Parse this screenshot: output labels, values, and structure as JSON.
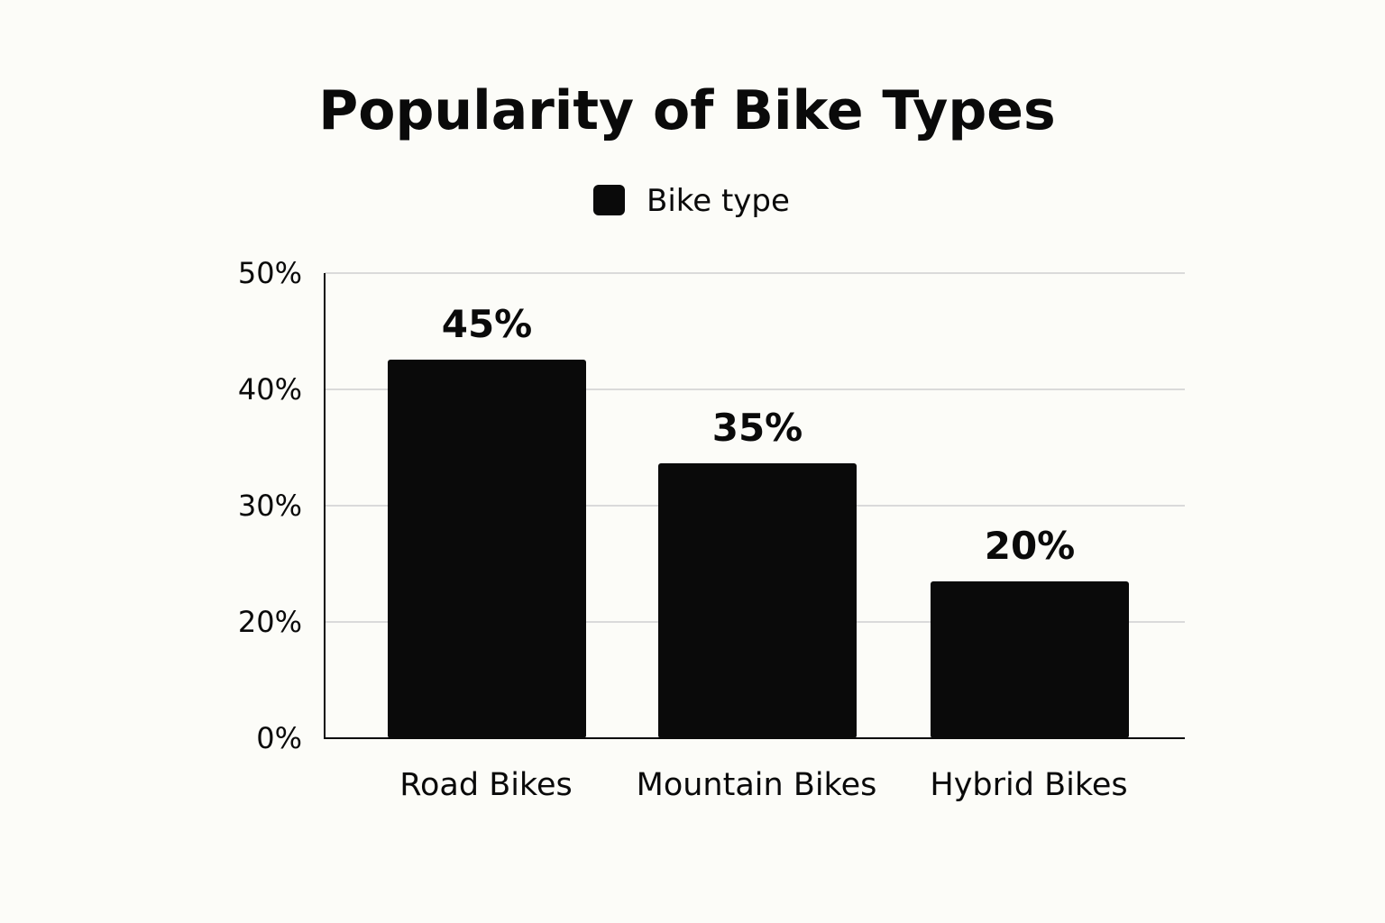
{
  "chart_data": {
    "type": "bar",
    "title": "Popularity of Bike Types",
    "legend": {
      "position": "top-center",
      "entries": [
        {
          "label": "Bike type",
          "color": "#0a0a0a"
        }
      ]
    },
    "categories": [
      "Road Bikes",
      "Mountain Bikes",
      "Hybrid Bikes"
    ],
    "values": [
      45,
      35,
      20
    ],
    "data_labels": [
      "45%",
      "35%",
      "20%"
    ],
    "bar_color": "#0a0a0a",
    "yticks": [
      {
        "value": 0,
        "label": "0%"
      },
      {
        "value": 20,
        "label": "20%"
      },
      {
        "value": 30,
        "label": "30%"
      },
      {
        "value": 40,
        "label": "40%"
      },
      {
        "value": 50,
        "label": "50%"
      }
    ],
    "ylim": [
      0,
      50
    ],
    "grid": true
  }
}
